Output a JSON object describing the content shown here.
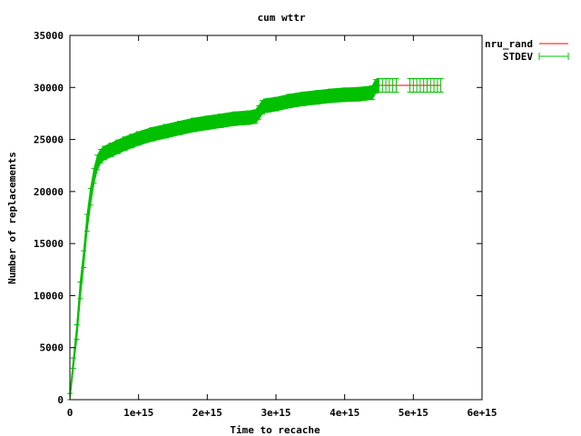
{
  "chart_data": {
    "type": "line",
    "title": "cum wttr",
    "xlabel": "Time to recache",
    "ylabel": "Number of replacements",
    "xlim": [
      0,
      6000000000000000.0
    ],
    "ylim": [
      0,
      35000
    ],
    "x_ticks": [
      {
        "value": 0,
        "label": "0"
      },
      {
        "value": 1000000000000000.0,
        "label": "1e+15"
      },
      {
        "value": 2000000000000000.0,
        "label": "2e+15"
      },
      {
        "value": 3000000000000000.0,
        "label": "3e+15"
      },
      {
        "value": 4000000000000000.0,
        "label": "4e+15"
      },
      {
        "value": 5000000000000000.0,
        "label": "5e+15"
      },
      {
        "value": 6000000000000000.0,
        "label": "6e+15"
      }
    ],
    "y_ticks": [
      {
        "value": 0,
        "label": "0"
      },
      {
        "value": 5000,
        "label": "5000"
      },
      {
        "value": 10000,
        "label": "10000"
      },
      {
        "value": 15000,
        "label": "15000"
      },
      {
        "value": 20000,
        "label": "20000"
      },
      {
        "value": 25000,
        "label": "25000"
      },
      {
        "value": 30000,
        "label": "30000"
      },
      {
        "value": 35000,
        "label": "35000"
      }
    ],
    "grid": false,
    "legend_position": "top-right, outside plot",
    "series": [
      {
        "name": "nru_rand",
        "style": "line",
        "color": "#ff0000",
        "x": [
          0,
          100000000000000.0,
          200000000000000.0,
          300000000000000.0,
          400000000000000.0,
          500000000000000.0,
          700000000000000.0,
          1000000000000000.0,
          1500000000000000.0,
          2000000000000000.0,
          2500000000000000.0,
          2700000000000000.0,
          2850000000000000.0,
          3000000000000000.0,
          3500000000000000.0,
          4000000000000000.0,
          4400000000000000.0,
          4500000000000000.0,
          5400000000000000.0
        ],
        "y": [
          0,
          6000,
          13500,
          19000,
          22500,
          23500,
          24200,
          25000,
          26000,
          26500,
          27000,
          27100,
          28200,
          28400,
          29000,
          29200,
          29400,
          30200,
          30200
        ]
      },
      {
        "name": "STDEV",
        "style": "errorbars",
        "color": "#00c000",
        "x": [
          0,
          50000000000000.0,
          100000000000000.0,
          150000000000000.0,
          200000000000000.0,
          250000000000000.0,
          300000000000000.0,
          350000000000000.0,
          400000000000000.0,
          450000000000000.0,
          500000000000000.0,
          600000000000000.0,
          700000000000000.0,
          800000000000000.0,
          900000000000000.0,
          1000000000000000.0,
          1200000000000000.0,
          1400000000000000.0,
          1600000000000000.0,
          1800000000000000.0,
          2000000000000000.0,
          2200000000000000.0,
          2400000000000000.0,
          2600000000000000.0,
          2700000000000000.0,
          2750000000000000.0,
          2800000000000000.0,
          2850000000000000.0,
          2900000000000000.0,
          3000000000000000.0,
          3200000000000000.0,
          3400000000000000.0,
          3600000000000000.0,
          3800000000000000.0,
          4000000000000000.0,
          4200000000000000.0,
          4400000000000000.0,
          4450000000000000.0,
          4500000000000000.0,
          4550000000000000.0,
          4600000000000000.0,
          4650000000000000.0,
          4700000000000000.0,
          4750000000000000.0,
          4950000000000000.0,
          5000000000000000.0,
          5050000000000000.0,
          5100000000000000.0,
          5150000000000000.0,
          5200000000000000.0,
          5250000000000000.0,
          5300000000000000.0,
          5350000000000000.0,
          5400000000000000.0
        ],
        "y": [
          300,
          3500,
          6500,
          10500,
          13500,
          17000,
          19500,
          21500,
          22800,
          23400,
          23700,
          24000,
          24300,
          24600,
          24850,
          25100,
          25500,
          25800,
          26100,
          26400,
          26600,
          26800,
          27000,
          27100,
          27200,
          27600,
          28100,
          28250,
          28300,
          28400,
          28700,
          28900,
          29050,
          29200,
          29300,
          29350,
          29500,
          30100,
          30200,
          30200,
          30200,
          30200,
          30200,
          30200,
          30200,
          30200,
          30200,
          30200,
          30200,
          30200,
          30200,
          30200,
          30200,
          30200
        ],
        "err": [
          300,
          500,
          700,
          800,
          800,
          800,
          800,
          700,
          700,
          650,
          650,
          650,
          650,
          650,
          650,
          650,
          650,
          650,
          650,
          650,
          650,
          650,
          650,
          650,
          650,
          650,
          650,
          650,
          650,
          650,
          650,
          650,
          650,
          650,
          650,
          650,
          650,
          650,
          650,
          650,
          650,
          650,
          650,
          650,
          650,
          650,
          650,
          650,
          650,
          650,
          650,
          650,
          650,
          650
        ]
      }
    ]
  }
}
